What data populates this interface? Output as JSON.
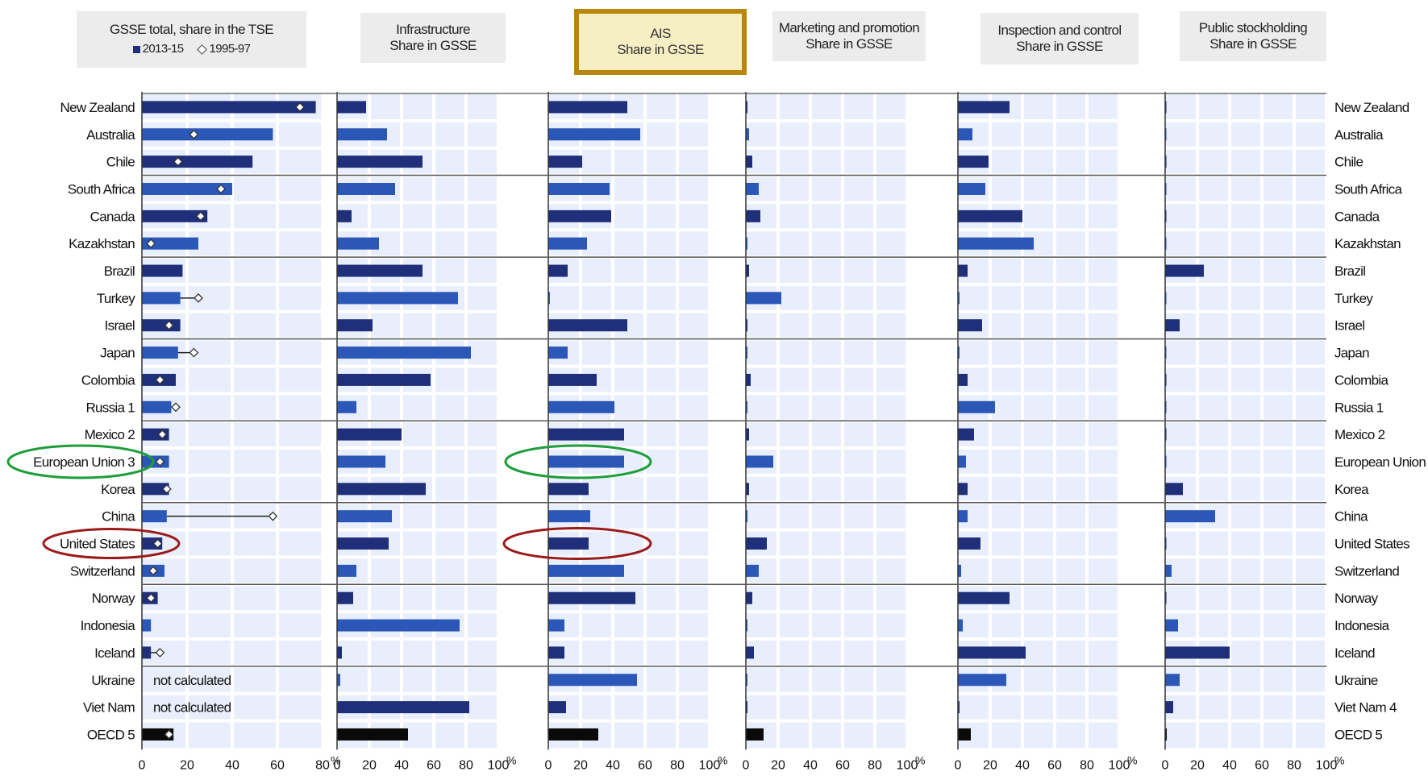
{
  "panels": [
    {
      "title_line1": "GSSE total, share in the TSE",
      "title_line2": "",
      "legend": [
        "2013-15",
        "1995-97"
      ],
      "highlighted": false
    },
    {
      "title_line1": "Infrastructure",
      "title_line2": "Share in GSSE",
      "highlighted": false
    },
    {
      "title_line1": "AIS",
      "title_line2": "Share in GSSE",
      "highlighted": true
    },
    {
      "title_line1": "Marketing and promotion",
      "title_line2": "Share in GSSE",
      "highlighted": false
    },
    {
      "title_line1": "Inspection and control",
      "title_line2": "Share in GSSE",
      "highlighted": false
    },
    {
      "title_line1": "Public stockholding",
      "title_line2": "Share in GSSE",
      "highlighted": false
    }
  ],
  "colors": {
    "bar_dark": "#1f2f7a",
    "bar_light": "#2b57b8",
    "bar_oecd": "#0a0a0a",
    "panel_bg": "#e8eefb",
    "grid": "#ffffff",
    "ellipse_green": "#1e9e3a",
    "ellipse_red": "#9b1b1b",
    "header_highlight_border": "#b8860b",
    "header_highlight_fill": "#f7efc4"
  },
  "chart_data": {
    "type": "bar",
    "orientation": "horizontal",
    "unit": "%",
    "categories_left": [
      "New Zealand",
      "Australia",
      "Chile",
      "South Africa",
      "Canada",
      "Kazakhstan",
      "Brazil",
      "Turkey",
      "Israel",
      "Japan",
      "Colombia",
      "Russia 1",
      "Mexico 2",
      "European Union 3",
      "Korea",
      "China",
      "United States",
      "Switzerland",
      "Norway",
      "Indonesia",
      "Iceland",
      "Ukraine",
      "Viet Nam",
      "OECD 5"
    ],
    "categories_right": [
      "New Zealand",
      "Australia",
      "Chile",
      "South Africa",
      "Canada",
      "Kazakhstan",
      "Brazil",
      "Turkey",
      "Israel",
      "Japan",
      "Colombia",
      "Russia 1",
      "Mexico 2",
      "European Union 3",
      "Korea",
      "China",
      "United States",
      "Switzerland",
      "Norway",
      "Indonesia",
      "Iceland",
      "Ukraine",
      "Viet Nam 4",
      "OECD 5"
    ],
    "group_separators_after": [
      2,
      5,
      8,
      11,
      14,
      17,
      20
    ],
    "not_calculated_label": "not calculated",
    "panels": [
      {
        "name": "GSSE total, share in the TSE",
        "xlim": [
          0,
          80
        ],
        "ticks": [
          0,
          20,
          40,
          60,
          80
        ],
        "show_percent": true,
        "series": [
          {
            "name": "2013-15",
            "values": [
              77,
              58,
              49,
              40,
              29,
              25,
              18,
              17,
              17,
              16,
              15,
              13,
              12,
              12,
              12,
              11,
              9,
              10,
              7,
              4,
              4,
              null,
              null,
              14
            ]
          },
          {
            "name": "1995-97",
            "values": [
              70,
              23,
              16,
              35,
              26,
              4,
              null,
              25,
              12,
              23,
              8,
              15,
              9,
              8,
              11,
              58,
              7,
              5,
              4,
              null,
              8,
              null,
              null,
              12
            ]
          }
        ]
      },
      {
        "name": "Infrastructure",
        "xlim": [
          0,
          100
        ],
        "ticks": [
          0,
          20,
          40,
          60,
          80,
          100
        ],
        "show_percent": true,
        "values": [
          18,
          31,
          53,
          36,
          9,
          26,
          53,
          75,
          22,
          83,
          58,
          12,
          40,
          30,
          55,
          34,
          32,
          12,
          10,
          76,
          3,
          2,
          82,
          44
        ]
      },
      {
        "name": "AIS",
        "xlim": [
          0,
          100
        ],
        "ticks": [
          0,
          20,
          40,
          60,
          80,
          100
        ],
        "show_percent": true,
        "values": [
          49,
          57,
          21,
          38,
          39,
          24,
          12,
          1,
          49,
          12,
          30,
          41,
          47,
          47,
          25,
          26,
          25,
          47,
          54,
          10,
          10,
          55,
          11,
          31
        ]
      },
      {
        "name": "Marketing and promotion",
        "xlim": [
          0,
          100
        ],
        "ticks": [
          0,
          20,
          40,
          60,
          80,
          100
        ],
        "show_percent": true,
        "values": [
          1,
          2,
          4,
          8,
          9,
          1,
          2,
          22,
          1,
          1,
          3,
          1,
          2,
          17,
          2,
          1,
          13,
          8,
          4,
          1,
          5,
          1,
          1,
          11
        ]
      },
      {
        "name": "Inspection and control",
        "xlim": [
          0,
          100
        ],
        "ticks": [
          0,
          20,
          40,
          60,
          80,
          100
        ],
        "show_percent": true,
        "values": [
          32,
          9,
          19,
          17,
          40,
          47,
          6,
          1,
          15,
          1,
          6,
          23,
          10,
          5,
          6,
          6,
          14,
          2,
          32,
          3,
          42,
          30,
          1,
          8
        ]
      },
      {
        "name": "Public stockholding",
        "xlim": [
          0,
          100
        ],
        "ticks": [
          0,
          20,
          40,
          60,
          80,
          100
        ],
        "show_percent": true,
        "values": [
          0,
          0,
          0,
          0,
          0,
          0,
          24,
          0,
          9,
          0,
          0,
          0,
          0,
          0,
          11,
          31,
          0,
          4,
          0,
          8,
          40,
          9,
          5,
          1
        ]
      }
    ],
    "bar_shade": [
      "dark",
      "light",
      "dark",
      "light",
      "dark",
      "light",
      "dark",
      "light",
      "dark",
      "light",
      "dark",
      "light",
      "dark",
      "light",
      "dark",
      "light",
      "dark",
      "light",
      "dark",
      "light",
      "dark",
      "light",
      "dark",
      "oecd"
    ],
    "annotations": [
      {
        "type": "ellipse",
        "color": "green",
        "target": "European Union 3",
        "panels": [
          "labels-left",
          "AIS"
        ]
      },
      {
        "type": "ellipse",
        "color": "red",
        "target": "United States",
        "panels": [
          "labels-left",
          "AIS"
        ]
      }
    ]
  }
}
